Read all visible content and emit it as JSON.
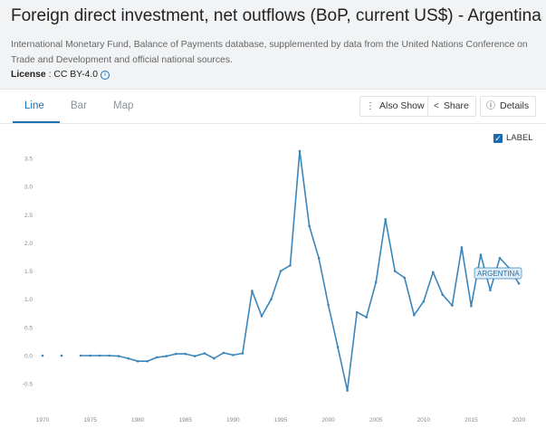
{
  "header": {
    "title": "Foreign direct investment, net outflows (BoP, current US$) - Argentina",
    "description": "International Monetary Fund, Balance of Payments database, supplemented by data from the United Nations Conference on Trade and Development and official national sources.",
    "license_label": "License",
    "license_value": " : CC BY-4.0"
  },
  "tabs": [
    {
      "label": "Line",
      "active": true
    },
    {
      "label": "Bar",
      "active": false
    },
    {
      "label": "Map",
      "active": false
    }
  ],
  "actions": {
    "also_show": "Also Show",
    "share": "Share",
    "details": "Details"
  },
  "label_toggle": {
    "text": "LABEL",
    "checked": true
  },
  "colors": {
    "line": "#3a86ba",
    "accent": "#1a73b7"
  },
  "icons": {
    "also_show": "vertical-ellipsis-icon",
    "share": "share-icon",
    "details": "info-icon"
  },
  "chart_data": {
    "type": "line",
    "title": "",
    "xlabel": "",
    "ylabel": "",
    "grid": false,
    "ylim": [
      -0.6,
      3.7
    ],
    "xlim": [
      1970,
      2020
    ],
    "x_ticks": [
      "1970",
      "1975",
      "1980",
      "1985",
      "1990",
      "1995",
      "2000",
      "2005",
      "2010",
      "2015",
      "2020"
    ],
    "y_ticks": [
      "3.5",
      "3.0",
      "2.5",
      "2.0",
      "1.5",
      "1.0",
      "0.5",
      "0.0",
      "-0.5"
    ],
    "series": [
      {
        "name": "ARGENTINA",
        "color": "#3a86ba",
        "points": [
          {
            "x": 1970,
            "y": 0.0
          },
          {
            "x": 1972,
            "y": 0.0
          },
          {
            "x": 1974,
            "y": 0.0
          },
          {
            "x": 1975,
            "y": 0.0
          },
          {
            "x": 1976,
            "y": 0.0
          },
          {
            "x": 1977,
            "y": 0.0
          },
          {
            "x": 1978,
            "y": -0.01
          },
          {
            "x": 1979,
            "y": -0.05
          },
          {
            "x": 1980,
            "y": -0.1
          },
          {
            "x": 1981,
            "y": -0.1
          },
          {
            "x": 1982,
            "y": -0.03
          },
          {
            "x": 1983,
            "y": -0.01
          },
          {
            "x": 1984,
            "y": 0.03
          },
          {
            "x": 1985,
            "y": 0.03
          },
          {
            "x": 1986,
            "y": -0.01
          },
          {
            "x": 1987,
            "y": 0.04
          },
          {
            "x": 1988,
            "y": -0.05
          },
          {
            "x": 1989,
            "y": 0.05
          },
          {
            "x": 1990,
            "y": 0.01
          },
          {
            "x": 1991,
            "y": 0.04
          },
          {
            "x": 1992,
            "y": 1.15
          },
          {
            "x": 1993,
            "y": 0.7
          },
          {
            "x": 1994,
            "y": 1.0
          },
          {
            "x": 1995,
            "y": 1.5
          },
          {
            "x": 1996,
            "y": 1.6
          },
          {
            "x": 1997,
            "y": 3.63
          },
          {
            "x": 1998,
            "y": 2.3
          },
          {
            "x": 1999,
            "y": 1.73
          },
          {
            "x": 2000,
            "y": 0.9
          },
          {
            "x": 2001,
            "y": 0.15
          },
          {
            "x": 2002,
            "y": -0.62
          },
          {
            "x": 2003,
            "y": 0.77
          },
          {
            "x": 2004,
            "y": 0.68
          },
          {
            "x": 2005,
            "y": 1.3
          },
          {
            "x": 2006,
            "y": 2.42
          },
          {
            "x": 2007,
            "y": 1.5
          },
          {
            "x": 2008,
            "y": 1.38
          },
          {
            "x": 2009,
            "y": 0.72
          },
          {
            "x": 2010,
            "y": 0.96
          },
          {
            "x": 2011,
            "y": 1.48
          },
          {
            "x": 2012,
            "y": 1.08
          },
          {
            "x": 2013,
            "y": 0.89
          },
          {
            "x": 2014,
            "y": 1.92
          },
          {
            "x": 2015,
            "y": 0.88
          },
          {
            "x": 2016,
            "y": 1.79
          },
          {
            "x": 2017,
            "y": 1.16
          },
          {
            "x": 2018,
            "y": 1.73
          },
          {
            "x": 2019,
            "y": 1.55
          },
          {
            "x": 2020,
            "y": 1.28
          }
        ]
      }
    ]
  }
}
